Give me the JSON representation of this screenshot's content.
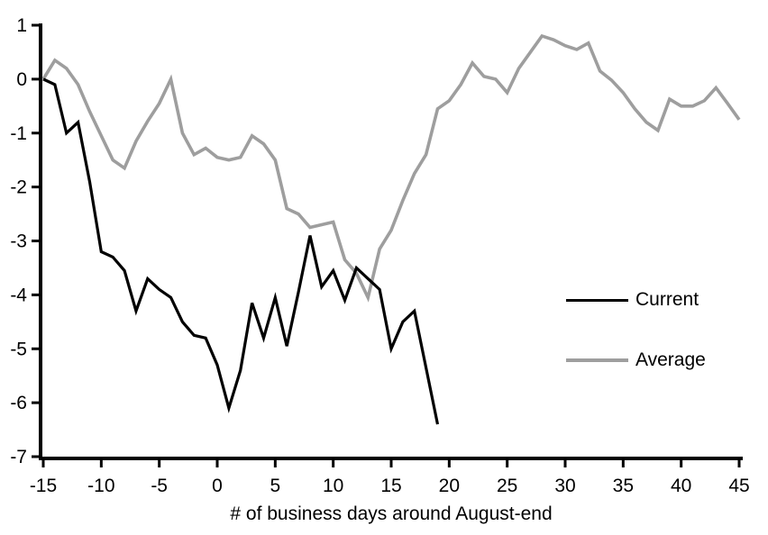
{
  "chart_data": {
    "type": "line",
    "title": "",
    "xlabel": "# of business days around August-end",
    "ylabel": "",
    "xlim": [
      -15,
      45
    ],
    "ylim": [
      -7,
      1
    ],
    "xticks": [
      -15,
      -10,
      -5,
      0,
      5,
      10,
      15,
      20,
      25,
      30,
      35,
      40,
      45
    ],
    "yticks": [
      1,
      0,
      -1,
      -2,
      -3,
      -4,
      -5,
      -6,
      -7
    ],
    "grid": false,
    "legend_position": "middle-right",
    "series": [
      {
        "name": "Current",
        "color": "#000000",
        "line_width": 3.2,
        "x": [
          -15,
          -14,
          -13,
          -12,
          -11,
          -10,
          -9,
          -8,
          -7,
          -6,
          -5,
          -4,
          -3,
          -2,
          -1,
          0,
          1,
          2,
          3,
          4,
          5,
          6,
          7,
          8,
          9,
          10,
          11,
          12,
          13,
          14,
          15,
          16,
          17,
          18,
          19
        ],
        "y": [
          0,
          -0.1,
          -1.0,
          -0.8,
          -1.9,
          -3.2,
          -3.3,
          -3.55,
          -4.3,
          -3.7,
          -3.9,
          -4.05,
          -4.5,
          -4.75,
          -4.8,
          -5.3,
          -6.1,
          -5.4,
          -4.15,
          -4.8,
          -4.05,
          -4.95,
          -3.95,
          -2.9,
          -3.85,
          -3.55,
          -4.1,
          -3.5,
          -3.7,
          -3.9,
          -5.0,
          -4.5,
          -4.3,
          -5.35,
          -6.4
        ]
      },
      {
        "name": "Average",
        "color": "#9e9e9e",
        "line_width": 3.6,
        "x": [
          -15,
          -14,
          -13,
          -12,
          -11,
          -10,
          -9,
          -8,
          -7,
          -6,
          -5,
          -4,
          -3,
          -2,
          -1,
          0,
          1,
          2,
          3,
          4,
          5,
          6,
          7,
          8,
          9,
          10,
          11,
          12,
          13,
          14,
          15,
          16,
          17,
          18,
          19,
          20,
          21,
          22,
          23,
          24,
          25,
          26,
          27,
          28,
          29,
          30,
          31,
          32,
          33,
          34,
          35,
          36,
          37,
          38,
          39,
          40,
          41,
          42,
          43,
          44,
          45
        ],
        "y": [
          0,
          0.35,
          0.2,
          -0.1,
          -0.6,
          -1.05,
          -1.5,
          -1.65,
          -1.15,
          -0.78,
          -0.45,
          0,
          -1.0,
          -1.4,
          -1.28,
          -1.45,
          -1.5,
          -1.45,
          -1.05,
          -1.2,
          -1.5,
          -2.4,
          -2.5,
          -2.75,
          -2.7,
          -2.65,
          -3.35,
          -3.6,
          -4.05,
          -3.15,
          -2.8,
          -2.25,
          -1.75,
          -1.4,
          -0.55,
          -0.4,
          -0.1,
          0.3,
          0.05,
          0,
          -0.25,
          0.2,
          0.5,
          0.8,
          0.73,
          0.62,
          0.55,
          0.67,
          0.15,
          -0.02,
          -0.25,
          -0.55,
          -0.8,
          -0.95,
          -0.37,
          -0.5,
          -0.5,
          -0.4,
          -0.16,
          -0.45,
          -0.75
        ]
      }
    ]
  },
  "colors": {
    "axis": "#000000",
    "text": "#000000",
    "background": "#ffffff",
    "current_line": "#000000",
    "average_line": "#9e9e9e"
  }
}
